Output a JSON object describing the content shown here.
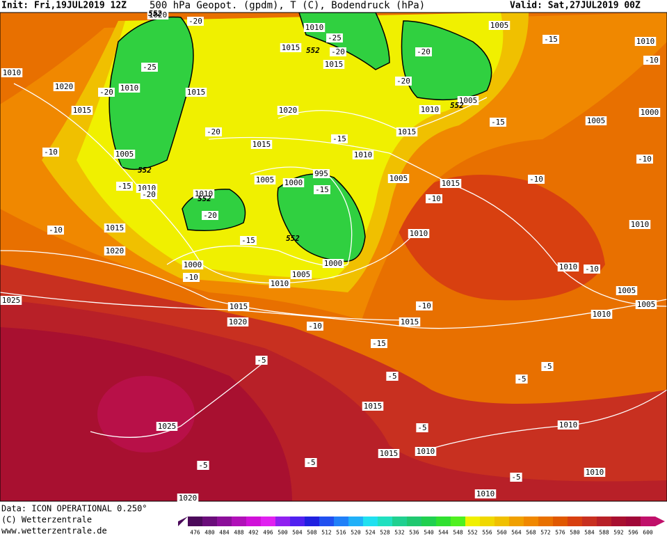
{
  "header": {
    "init": "Init: Fri,19JUL2019 12Z",
    "title": "500 hPa Geopot. (gpdm), T (C), Bodendruck (hPa)",
    "valid": "Valid: Sat,27JUL2019 00Z"
  },
  "footer": {
    "data": "Data: ICON OPERATIONAL 0.250°",
    "copyright": "(C) Wetterzentrale",
    "url": "www.wetterzentrale.de"
  },
  "colorbar": {
    "ticks": [
      476,
      480,
      484,
      488,
      492,
      496,
      500,
      504,
      508,
      512,
      516,
      520,
      524,
      528,
      532,
      536,
      540,
      544,
      548,
      552,
      556,
      560,
      564,
      568,
      572,
      576,
      580,
      584,
      588,
      592,
      596,
      600
    ],
    "colors": [
      "#4b0a5a",
      "#6a0d7a",
      "#8b0f99",
      "#b010b8",
      "#d010d8",
      "#e020f0",
      "#9020f0",
      "#5020f0",
      "#2020e0",
      "#2050f0",
      "#2080f8",
      "#20b0f8",
      "#20e0f0",
      "#20e0c0",
      "#20d090",
      "#20c870",
      "#20d050",
      "#30e030",
      "#50f020",
      "#f0f000",
      "#f0d800",
      "#f0c000",
      "#f0a000",
      "#f08800",
      "#e87000",
      "#e05800",
      "#d84010",
      "#c83020",
      "#b82028",
      "#a81030",
      "#a00838",
      "#c0106a"
    ]
  },
  "labels": {
    "pressure": [
      1020,
      1010,
      1005,
      1010,
      1015,
      1015,
      1010,
      1020,
      1010,
      1015,
      1015,
      1020,
      1010,
      1005,
      1000,
      1005,
      1015,
      1015,
      1010,
      1005,
      1005,
      1000,
      995,
      1005,
      1015,
      1010,
      1010,
      1015,
      1010,
      1010,
      1020,
      1000,
      1000,
      1005,
      1010,
      1010,
      1005,
      1005,
      1010,
      1025,
      1015,
      1020,
      1015,
      1015,
      1025,
      1010,
      1015,
      1010,
      1010,
      1010,
      1020
    ],
    "temperature": [
      -20,
      -25,
      -20,
      -20,
      -15,
      -10,
      -25,
      -20,
      -20,
      -15,
      -20,
      -15,
      -10,
      -10,
      -15,
      -20,
      -15,
      -10,
      -10,
      -20,
      -10,
      -15,
      -10,
      -10,
      -10,
      -10,
      -15,
      -5,
      -5,
      -5,
      -5,
      -5,
      -5,
      -5,
      -5
    ],
    "height": [
      552,
      552,
      552,
      552,
      552,
      552
    ]
  }
}
